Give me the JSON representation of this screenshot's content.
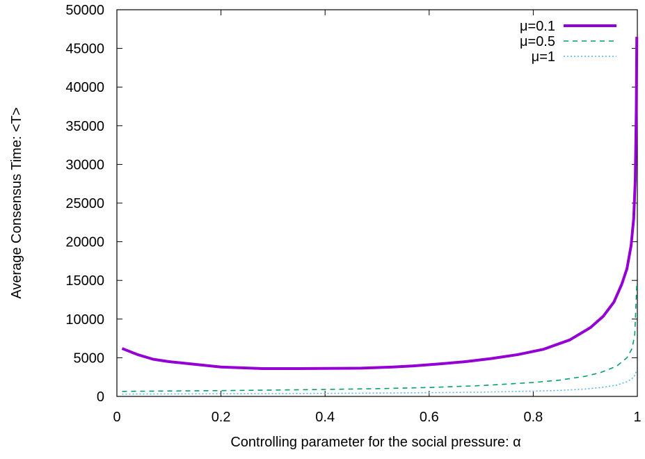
{
  "chart_data": {
    "type": "line",
    "title": "",
    "xlabel": "Controlling parameter for the social pressure:  α",
    "ylabel": "Average Consensus Time: <T>",
    "xlim": [
      0,
      1
    ],
    "ylim": [
      0,
      50000
    ],
    "xticks": [
      "0",
      "0.2",
      "0.4",
      "0.6",
      "0.8",
      "1"
    ],
    "yticks": [
      "0",
      "5000",
      "10000",
      "15000",
      "20000",
      "25000",
      "30000",
      "35000",
      "40000",
      "45000",
      "50000"
    ],
    "grid": false,
    "legend_position": "top-right",
    "series": [
      {
        "name": "μ=0.1",
        "color": "#9400d3",
        "style": "solid",
        "x": [
          0.01,
          0.04,
          0.07,
          0.1,
          0.15,
          0.2,
          0.28,
          0.35,
          0.4,
          0.47,
          0.53,
          0.57,
          0.62,
          0.67,
          0.72,
          0.77,
          0.82,
          0.87,
          0.91,
          0.935,
          0.955,
          0.97,
          0.98,
          0.988,
          0.993,
          0.996,
          0.998,
          0.999
        ],
        "y": [
          6200,
          5400,
          4800,
          4500,
          4150,
          3800,
          3600,
          3600,
          3620,
          3650,
          3800,
          3950,
          4200,
          4500,
          4900,
          5400,
          6100,
          7300,
          8900,
          10400,
          12200,
          14500,
          16500,
          19500,
          23000,
          28000,
          37000,
          46500
        ]
      },
      {
        "name": "μ=0.5",
        "color": "#009e73",
        "style": "dashed",
        "x": [
          0.01,
          0.1,
          0.2,
          0.3,
          0.4,
          0.5,
          0.6,
          0.7,
          0.8,
          0.85,
          0.9,
          0.93,
          0.96,
          0.98,
          0.99,
          0.995,
          0.999
        ],
        "y": [
          650,
          700,
          750,
          820,
          900,
          1000,
          1150,
          1400,
          1800,
          2100,
          2600,
          3100,
          3900,
          5000,
          6200,
          8000,
          14500
        ]
      },
      {
        "name": "μ=1",
        "color": "#56b4e9",
        "style": "dotted",
        "x": [
          0.01,
          0.1,
          0.2,
          0.3,
          0.4,
          0.5,
          0.6,
          0.7,
          0.8,
          0.85,
          0.9,
          0.93,
          0.96,
          0.98,
          0.99,
          0.995,
          0.999
        ],
        "y": [
          300,
          320,
          340,
          360,
          390,
          430,
          480,
          550,
          680,
          780,
          950,
          1150,
          1450,
          1900,
          2300,
          2700,
          3400
        ]
      }
    ]
  }
}
